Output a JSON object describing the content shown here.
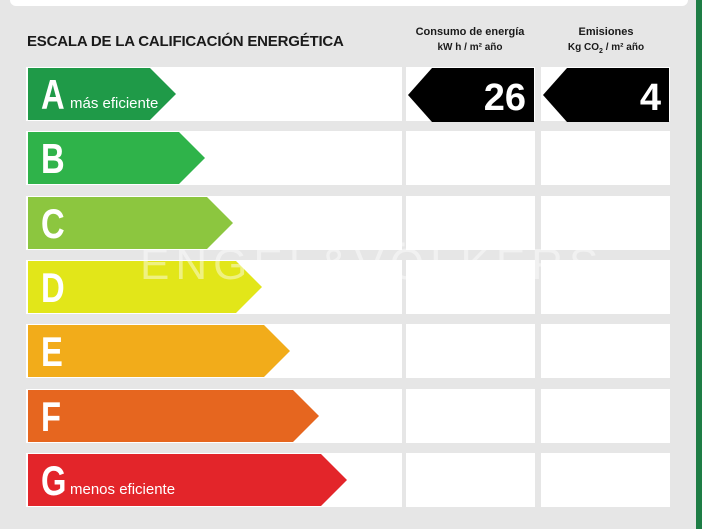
{
  "title": "ESCALA DE LA CALIFICACIÓN ENERGÉTICA",
  "columns": {
    "consumo": {
      "label": "Consumo de energía",
      "unit": "kW h / m² año"
    },
    "emisiones": {
      "label": "Emisiones",
      "unit_prefix": "Kg CO",
      "unit_sub": "2",
      "unit_suffix": " / m² año"
    }
  },
  "rows": [
    {
      "letter": "A",
      "desc": "más eficiente",
      "color": "#1f9a48"
    },
    {
      "letter": "B",
      "desc": "",
      "color": "#2fb34a"
    },
    {
      "letter": "C",
      "desc": "",
      "color": "#8cc63f"
    },
    {
      "letter": "D",
      "desc": "",
      "color": "#e2e619"
    },
    {
      "letter": "E",
      "desc": "",
      "color": "#f2ac1a"
    },
    {
      "letter": "F",
      "desc": "",
      "color": "#e6661f"
    },
    {
      "letter": "G",
      "desc": "menos eficiente",
      "color": "#e3252a"
    }
  ],
  "rating": {
    "row": "A",
    "consumo_value": "26",
    "emisiones_value": "4"
  },
  "watermark": "ENGEL&VÖLKERS"
}
